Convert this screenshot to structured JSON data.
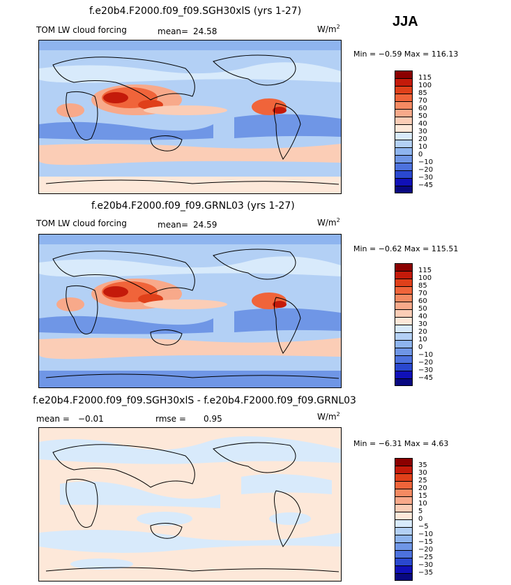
{
  "season": "JJA",
  "units_base": "W/m",
  "units_exp": "2",
  "chart_data": [
    {
      "type": "heatmap",
      "title": "f.e20b4.F2000.f09_f09.SGH30xlS (yrs 1-27)",
      "subtitle": "TOM LW cloud forcing",
      "stat_label": "mean=",
      "stat_value": "24.58",
      "min_text": "Min =  −0.59 Max = 116.13",
      "colorbar_labels": [
        "115",
        "100",
        "85",
        "70",
        "60",
        "50",
        "40",
        "30",
        "20",
        "10",
        "0",
        "−10",
        "−20",
        "−30",
        "−45"
      ],
      "colors": [
        "#8b0000",
        "#c41a0a",
        "#e0401a",
        "#f0643a",
        "#f58a62",
        "#f8a98a",
        "#fbcdb6",
        "#fde8d9",
        "#d8eafb",
        "#b3d0f5",
        "#8eb4ef",
        "#6f96e6",
        "#4d72de",
        "#2a48cf",
        "#1010b8",
        "#080880"
      ]
    },
    {
      "type": "heatmap",
      "title": "f.e20b4.F2000.f09_f09.GRNL03 (yrs 1-27)",
      "subtitle": "TOM LW cloud forcing",
      "stat_label": "mean=",
      "stat_value": "24.59",
      "min_text": "Min =  −0.62 Max = 115.51",
      "colorbar_labels": [
        "115",
        "100",
        "85",
        "70",
        "60",
        "50",
        "40",
        "30",
        "20",
        "10",
        "0",
        "−10",
        "−20",
        "−30",
        "−45"
      ],
      "colors": [
        "#8b0000",
        "#c41a0a",
        "#e0401a",
        "#f0643a",
        "#f58a62",
        "#f8a98a",
        "#fbcdb6",
        "#fde8d9",
        "#d8eafb",
        "#b3d0f5",
        "#8eb4ef",
        "#6f96e6",
        "#4d72de",
        "#2a48cf",
        "#1010b8",
        "#080880"
      ]
    },
    {
      "type": "heatmap",
      "title": "f.e20b4.F2000.f09_f09.SGH30xlS - f.e20b4.F2000.f09_f09.GRNL03",
      "stat_label": "mean =",
      "stat_value": "−0.01",
      "rmse_label": "rmse =",
      "rmse_value": "0.95",
      "min_text": "Min =  −6.31 Max =   4.63",
      "colorbar_labels": [
        "35",
        "30",
        "25",
        "20",
        "15",
        "10",
        "5",
        "0",
        "−5",
        "−10",
        "−15",
        "−20",
        "−25",
        "−30",
        "−35"
      ],
      "colors": [
        "#8b0000",
        "#c41a0a",
        "#e0401a",
        "#f0643a",
        "#f58a62",
        "#f8a98a",
        "#fbcdb6",
        "#fde8d9",
        "#d8eafb",
        "#b3d0f5",
        "#8eb4ef",
        "#6f96e6",
        "#4d72de",
        "#2a48cf",
        "#1010b8",
        "#080880"
      ]
    }
  ]
}
